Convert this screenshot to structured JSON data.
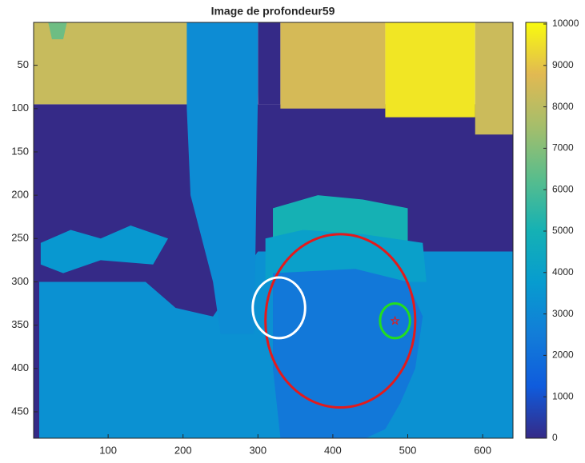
{
  "chart_data": {
    "type": "image",
    "title": "Image de profondeur59",
    "colormap": "parula",
    "xlim": [
      0.5,
      640.5
    ],
    "ylim": [
      0.5,
      480.5
    ],
    "y_reversed": true,
    "xticks": [
      100,
      200,
      300,
      400,
      500,
      600
    ],
    "yticks": [
      50,
      100,
      150,
      200,
      250,
      300,
      350,
      400,
      450
    ],
    "clim": [
      0,
      10000
    ],
    "cticks": [
      0,
      1000,
      2000,
      3000,
      4000,
      5000,
      6000,
      7000,
      8000,
      9000,
      10000
    ],
    "regions": [
      {
        "value": 3300,
        "polygon": [
          [
            0.5,
            260
          ],
          [
            640.5,
            260
          ],
          [
            640.5,
            480.5
          ],
          [
            0.5,
            480.5
          ]
        ]
      },
      {
        "value": 0,
        "polygon": [
          [
            0.5,
            95
          ],
          [
            640.5,
            95
          ],
          [
            640.5,
            265
          ],
          [
            300,
            265
          ],
          [
            240,
            340
          ],
          [
            190,
            330
          ],
          [
            150,
            300
          ],
          [
            0.5,
            300
          ]
        ]
      },
      {
        "value": 3600,
        "polygon": [
          [
            10,
            255
          ],
          [
            50,
            240
          ],
          [
            90,
            250
          ],
          [
            130,
            235
          ],
          [
            180,
            250
          ],
          [
            160,
            280
          ],
          [
            90,
            275
          ],
          [
            40,
            290
          ],
          [
            10,
            280
          ]
        ]
      },
      {
        "value": 8200,
        "polygon": [
          [
            0.5,
            0.5
          ],
          [
            230,
            0.5
          ],
          [
            230,
            95
          ],
          [
            0.5,
            95
          ]
        ]
      },
      {
        "value": 6600,
        "polygon": [
          [
            20,
            0.5
          ],
          [
            45,
            0.5
          ],
          [
            40,
            20
          ],
          [
            25,
            20
          ]
        ]
      },
      {
        "value": 0,
        "polygon": [
          [
            300,
            0.5
          ],
          [
            330,
            0.5
          ],
          [
            330,
            95
          ],
          [
            300,
            95
          ]
        ]
      },
      {
        "value": 8500,
        "polygon": [
          [
            330,
            0.5
          ],
          [
            470,
            0.5
          ],
          [
            470,
            100
          ],
          [
            330,
            100
          ]
        ]
      },
      {
        "value": 9600,
        "polygon": [
          [
            470,
            0.5
          ],
          [
            590,
            0.5
          ],
          [
            590,
            110
          ],
          [
            470,
            110
          ]
        ]
      },
      {
        "value": 8300,
        "polygon": [
          [
            590,
            0.5
          ],
          [
            640.5,
            0.5
          ],
          [
            640.5,
            130
          ],
          [
            590,
            130
          ]
        ]
      },
      {
        "value": 3100,
        "polygon": [
          [
            205,
            0.5
          ],
          [
            300,
            0.5
          ],
          [
            300,
            80
          ],
          [
            295,
            360
          ],
          [
            250,
            360
          ],
          [
            240,
            300
          ],
          [
            210,
            200
          ],
          [
            205,
            100
          ]
        ]
      },
      {
        "value": 5000,
        "polygon": [
          [
            320,
            215
          ],
          [
            380,
            200
          ],
          [
            440,
            205
          ],
          [
            500,
            215
          ],
          [
            500,
            260
          ],
          [
            320,
            260
          ]
        ]
      },
      {
        "value": 4000,
        "polygon": [
          [
            310,
            250
          ],
          [
            360,
            240
          ],
          [
            440,
            245
          ],
          [
            520,
            255
          ],
          [
            525,
            300
          ],
          [
            310,
            300
          ]
        ]
      },
      {
        "value": 2300,
        "polygon": [
          [
            320,
            290
          ],
          [
            430,
            285
          ],
          [
            500,
            300
          ],
          [
            520,
            340
          ],
          [
            510,
            400
          ],
          [
            490,
            440
          ],
          [
            470,
            470
          ],
          [
            420,
            490
          ],
          [
            330,
            480
          ],
          [
            320,
            400
          ]
        ]
      },
      {
        "value": 0,
        "polygon": [
          [
            0.5,
            130
          ],
          [
            8,
            130
          ],
          [
            8,
            480.5
          ],
          [
            0.5,
            480.5
          ]
        ]
      }
    ],
    "circles": [
      {
        "cx": 410,
        "cy": 345,
        "r": 100,
        "color": "#e31a1c"
      },
      {
        "cx": 328,
        "cy": 330,
        "r": 35,
        "color": "#ffffff"
      },
      {
        "cx": 483,
        "cy": 345,
        "r": 20,
        "color": "#22dd22"
      }
    ],
    "marker": {
      "x": 483,
      "y": 345,
      "color": "#e31a1c"
    }
  }
}
